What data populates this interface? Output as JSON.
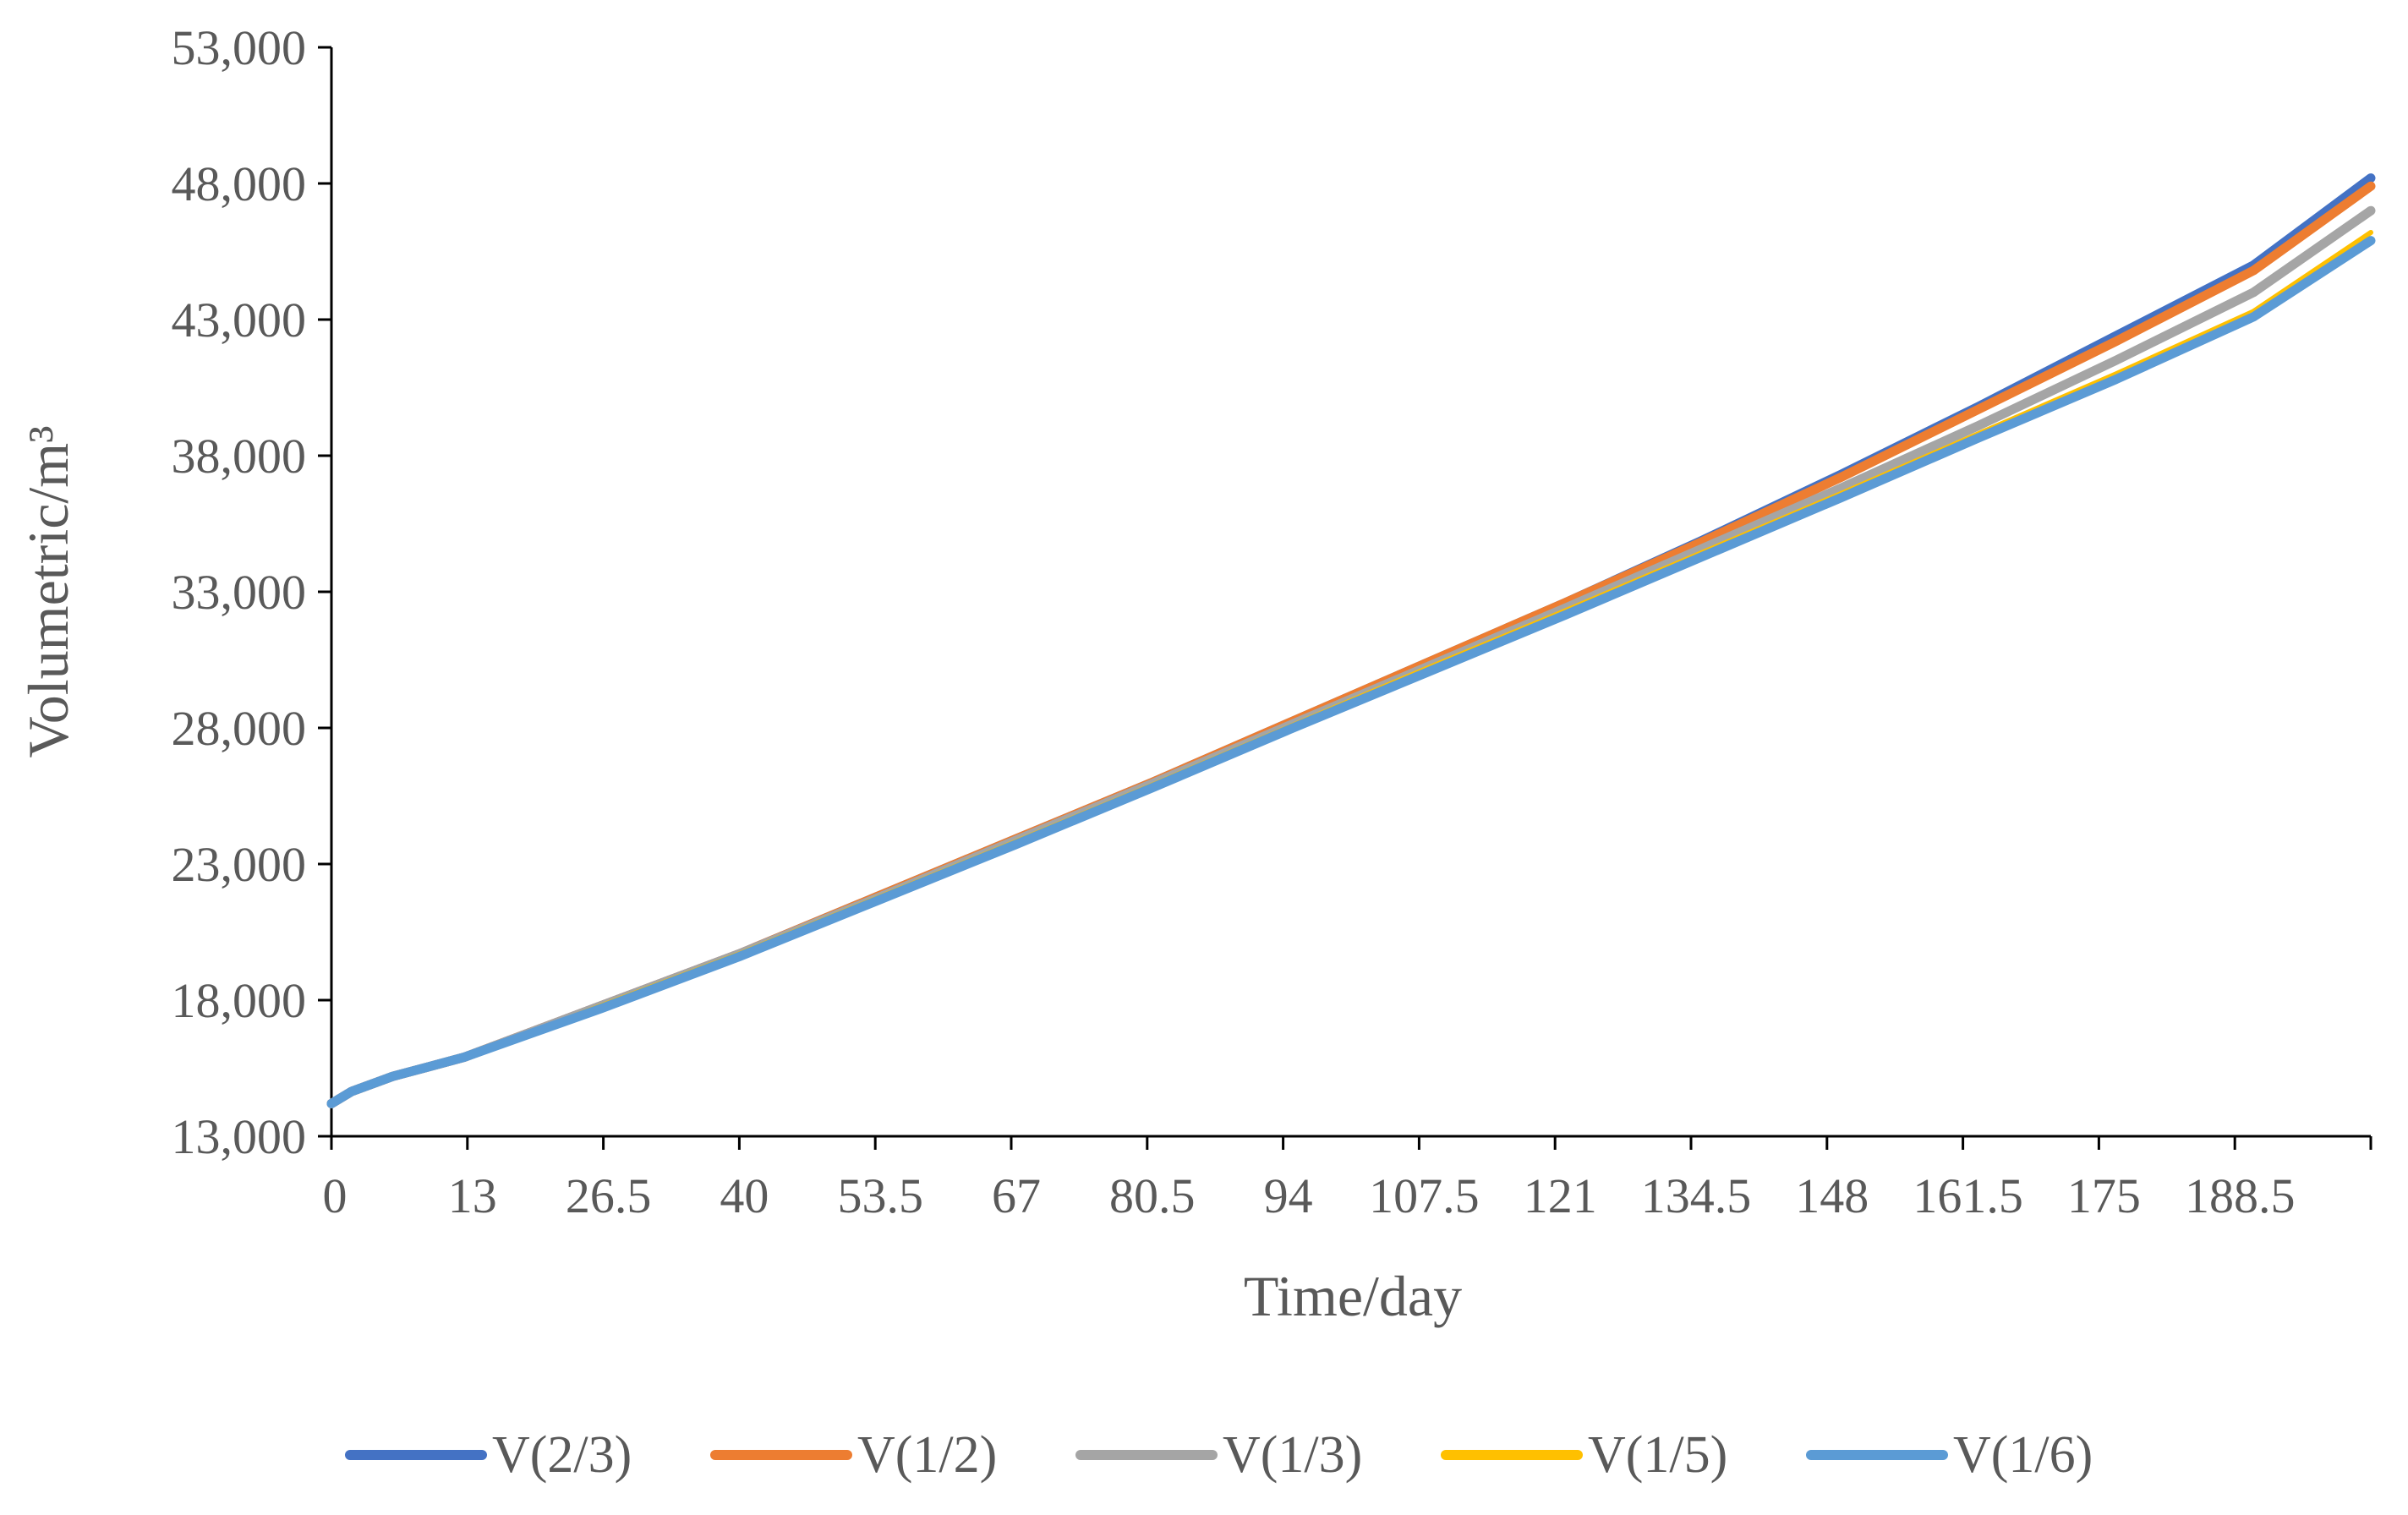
{
  "chart_data": {
    "type": "line",
    "xlabel": "Time/day",
    "ylabel": "Volumetric/m³",
    "xlim": [
      0,
      200
    ],
    "ylim": [
      13000,
      53000
    ],
    "x_ticks": [
      "0",
      "13",
      "26.5",
      "40",
      "53.5",
      "67",
      "80.5",
      "94",
      "107.5",
      "121",
      "134.5",
      "148",
      "161.5",
      "175",
      "188.5"
    ],
    "y_ticks": [
      "13,000",
      "18,000",
      "23,000",
      "28,000",
      "33,000",
      "38,000",
      "43,000",
      "48,000",
      "53,000"
    ],
    "grid": false,
    "legend_position": "bottom",
    "series": [
      {
        "name": "V(2/3)",
        "color": "#4472C4",
        "x": [
          0,
          2,
          6,
          13,
          26.5,
          40,
          53.5,
          67,
          80.5,
          94,
          107.5,
          121,
          134.5,
          148,
          161.5,
          175,
          188.5,
          200
        ],
        "y": [
          14200,
          14650,
          15200,
          15900,
          17800,
          19700,
          21800,
          23900,
          26000,
          28200,
          30400,
          32600,
          34900,
          37300,
          39800,
          42400,
          45000,
          48200
        ]
      },
      {
        "name": "V(1/2)",
        "color": "#ED7D31",
        "x": [
          0,
          2,
          6,
          13,
          26.5,
          40,
          53.5,
          67,
          80.5,
          94,
          107.5,
          121,
          134.5,
          148,
          161.5,
          175,
          188.5,
          200
        ],
        "y": [
          14200,
          14650,
          15200,
          15900,
          17800,
          19700,
          21800,
          23900,
          26000,
          28200,
          30400,
          32600,
          34850,
          37200,
          39700,
          42200,
          44800,
          47900
        ]
      },
      {
        "name": "V(1/3)",
        "color": "#A5A5A5",
        "x": [
          0,
          2,
          6,
          13,
          26.5,
          40,
          53.5,
          67,
          80.5,
          94,
          107.5,
          121,
          134.5,
          148,
          161.5,
          175,
          188.5,
          200
        ],
        "y": [
          14200,
          14650,
          15200,
          15900,
          17800,
          19700,
          21750,
          23850,
          25950,
          28100,
          30250,
          32400,
          34600,
          36800,
          39100,
          41500,
          44000,
          47000
        ]
      },
      {
        "name": "V(1/5)",
        "color": "#FFC000",
        "x": [
          0,
          2,
          6,
          13,
          26.5,
          40,
          53.5,
          67,
          80.5,
          94,
          107.5,
          121,
          134.5,
          148,
          161.5,
          175,
          188.5,
          200
        ],
        "y": [
          14200,
          14650,
          15200,
          15900,
          17800,
          19700,
          21750,
          23800,
          25900,
          28050,
          30200,
          32300,
          34450,
          36600,
          38800,
          41000,
          43300,
          46200
        ]
      },
      {
        "name": "V(1/6)",
        "color": "#5B9BD5",
        "x": [
          0,
          2,
          6,
          13,
          26.5,
          40,
          53.5,
          67,
          80.5,
          94,
          107.5,
          121,
          134.5,
          148,
          161.5,
          175,
          188.5,
          200
        ],
        "y": [
          14200,
          14650,
          15200,
          15900,
          17700,
          19600,
          21650,
          23700,
          25800,
          27950,
          30050,
          32150,
          34300,
          36450,
          38650,
          40800,
          43100,
          45900
        ]
      }
    ]
  }
}
